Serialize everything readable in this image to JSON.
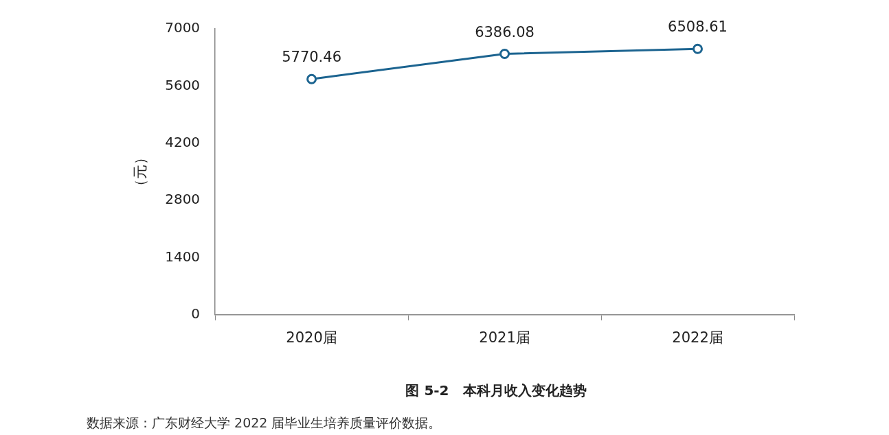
{
  "chart_data": {
    "type": "line",
    "title": "图 5-2　本科月收入变化趋势",
    "ylabel": "（元）",
    "categories": [
      "2020届",
      "2021届",
      "2022届"
    ],
    "series": [
      {
        "color": "#1c6490",
        "values": [
          5770.46,
          6386.08,
          6508.61
        ]
      }
    ],
    "ylim": [
      0,
      7000
    ],
    "yticks": [
      0,
      1400,
      2800,
      4200,
      5600,
      7000
    ],
    "grid": false,
    "legend": false,
    "marker": "circle",
    "line_style": "solid",
    "data_labels": true,
    "annotations": [
      "数据来源：广东财经大学 2022 届毕业生培养质量评价数据。"
    ]
  }
}
